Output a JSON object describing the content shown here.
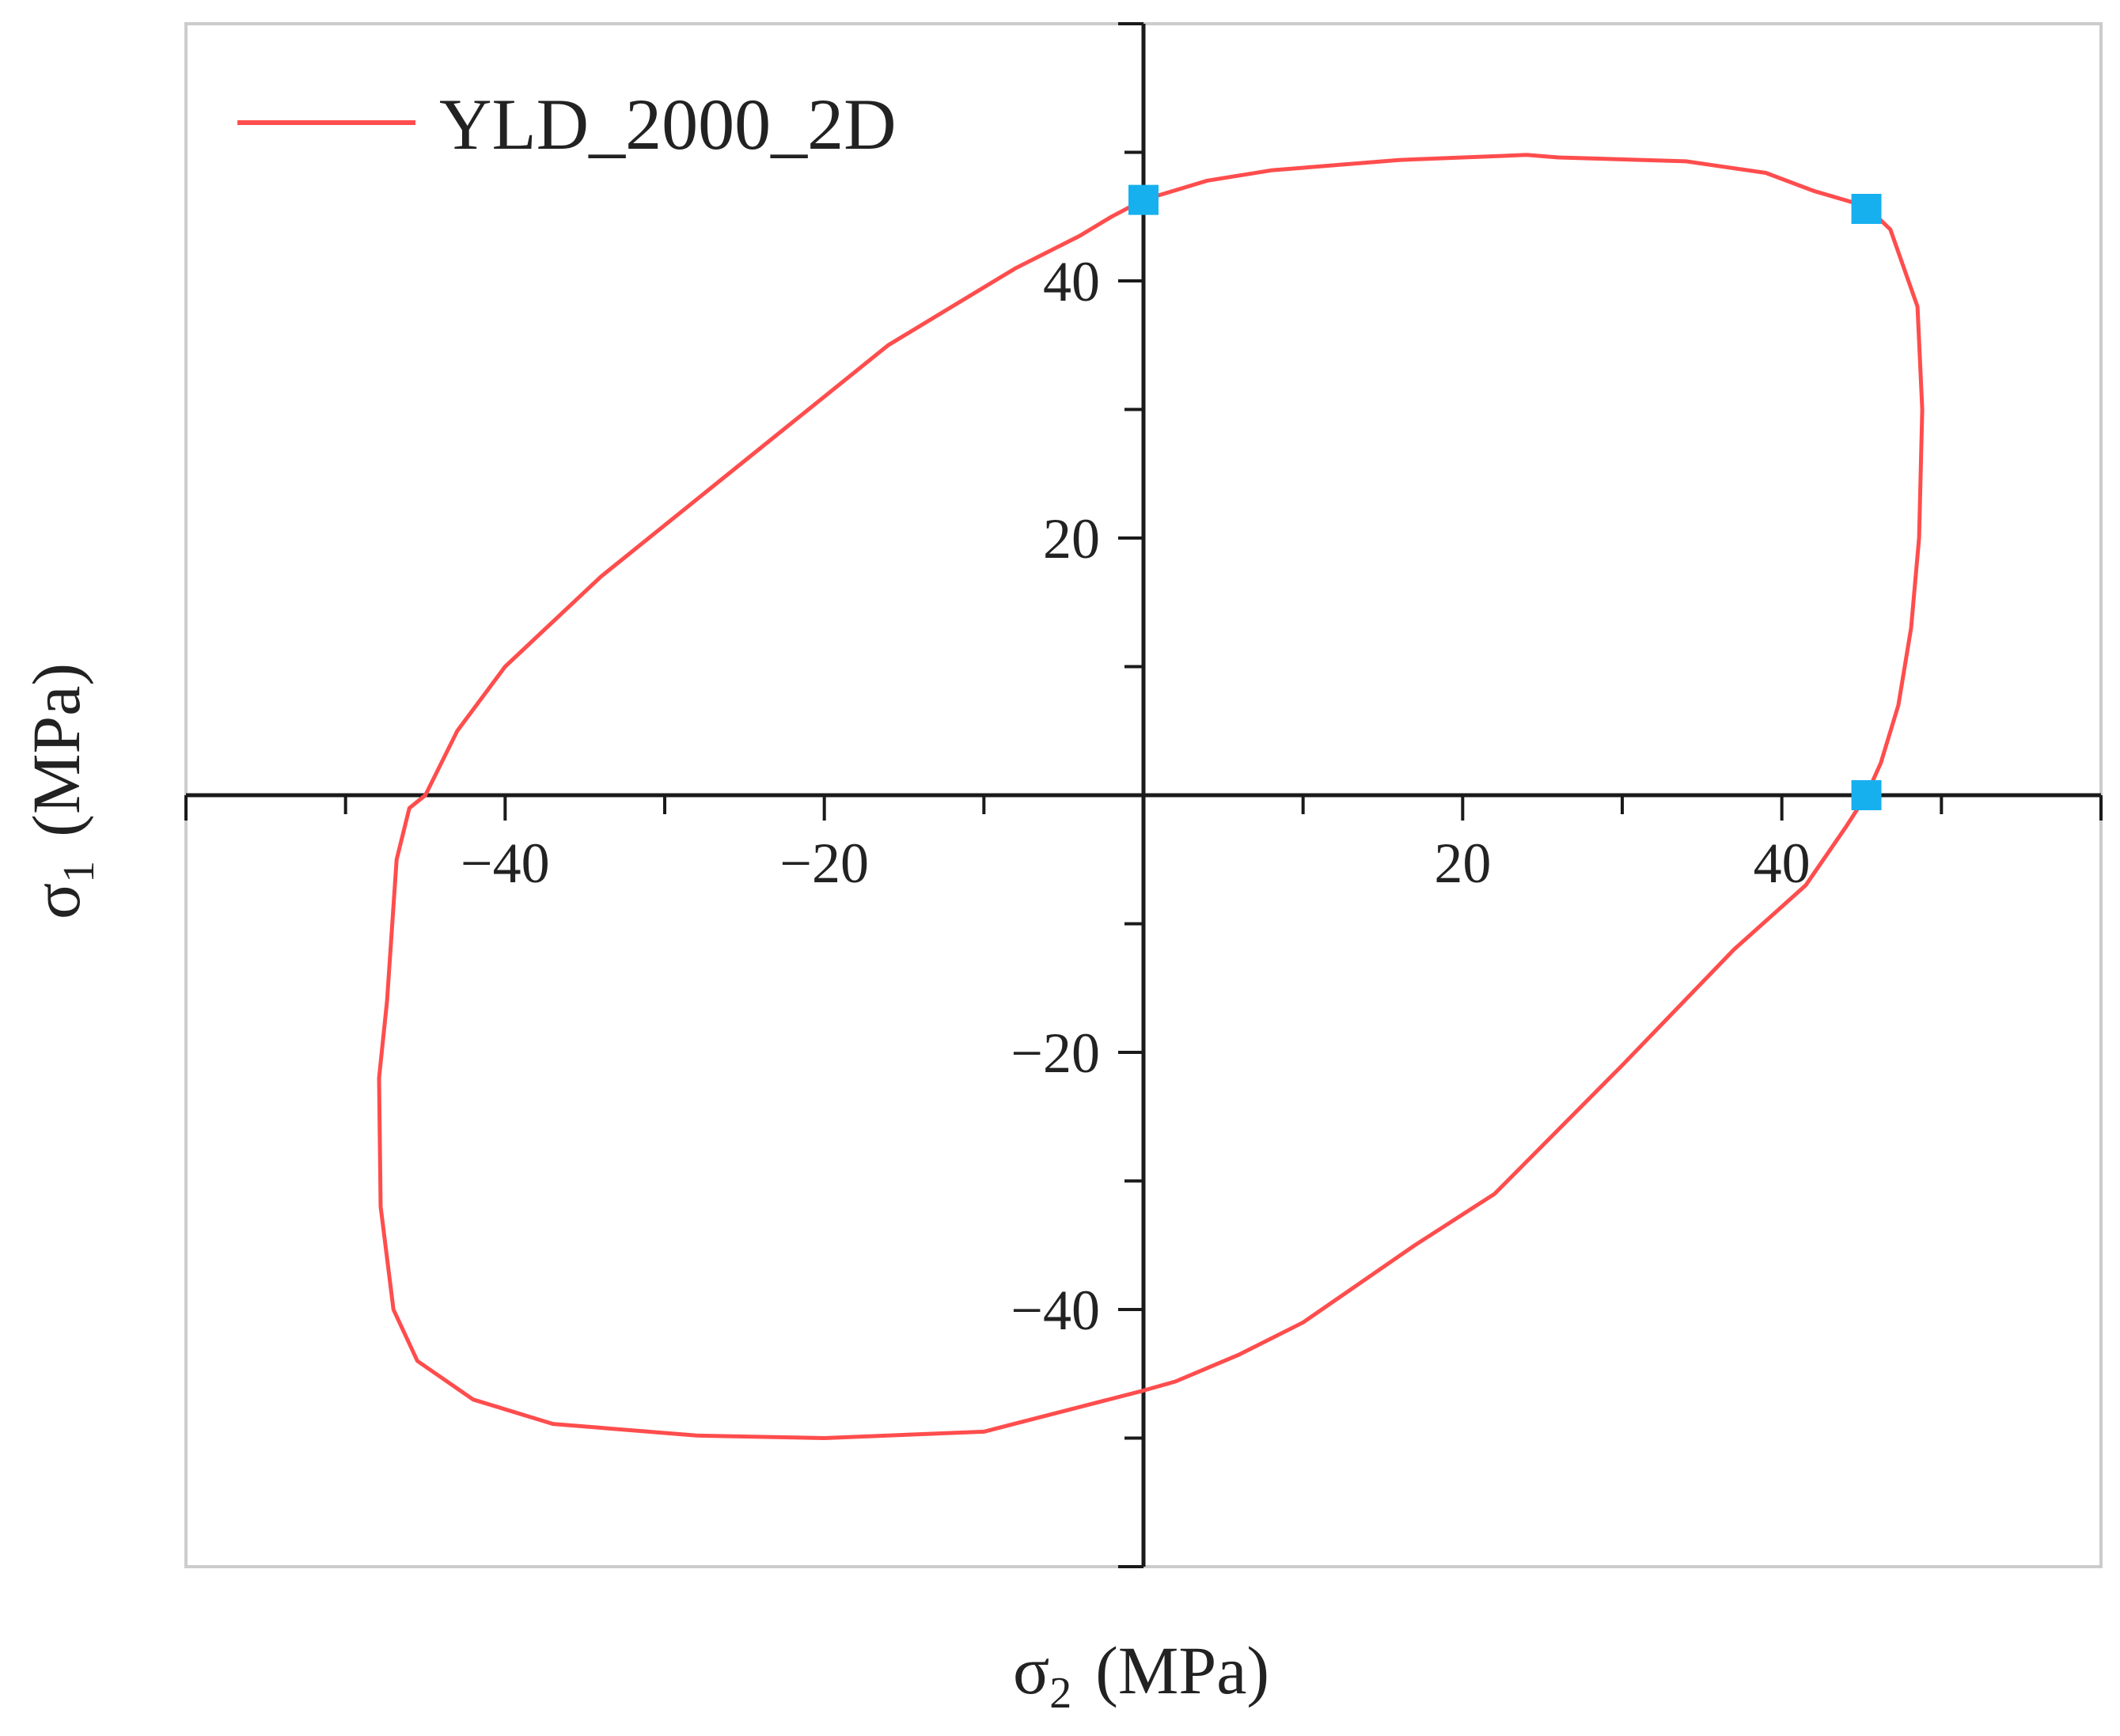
{
  "chart_data": {
    "type": "line",
    "title": "",
    "xlabel": {
      "symbol": "σ",
      "subscript": "2",
      "unit": "(MPa)"
    },
    "ylabel": {
      "symbol": "σ",
      "subscript": "1",
      "unit": "(MPa)"
    },
    "xlim": [
      -60,
      60
    ],
    "ylim": [
      -60,
      60
    ],
    "x_ticks": [
      -40,
      -20,
      20,
      40
    ],
    "y_ticks": [
      40,
      20,
      -20,
      -40
    ],
    "x_tick_labels": [
      "−40",
      "−20",
      "20",
      "40"
    ],
    "y_tick_labels": [
      "40",
      "20",
      "−20",
      "−40"
    ],
    "grid": false,
    "legend": {
      "position": "top-left"
    },
    "series": [
      {
        "name": "YLD_2000_2D",
        "color": "#ff4d4d",
        "closed": true,
        "x": [
          0,
          4,
          8,
          16,
          24,
          26,
          34,
          39,
          42,
          45.3,
          46.8,
          48.5,
          48.8,
          48.6,
          48.1,
          47.3,
          46.2,
          45.3,
          44,
          41.5,
          37,
          30,
          22,
          17,
          10,
          6,
          2,
          0,
          -10,
          -20,
          -28,
          -37,
          -42,
          -45.5,
          -47,
          -47.8,
          -47.9,
          -47.4,
          -46.8,
          -46,
          -45,
          -43,
          -40,
          -34,
          -27,
          -23,
          -20,
          -16,
          -12,
          -8,
          -4,
          -2,
          0
        ],
        "y": [
          46.3,
          47.8,
          48.6,
          49.4,
          49.8,
          49.6,
          49.3,
          48.4,
          47.0,
          45.8,
          44.0,
          38.0,
          30.0,
          20.0,
          13.0,
          7.0,
          2.5,
          0.0,
          -2.5,
          -7.0,
          -12.0,
          -21.0,
          -31.0,
          -35.0,
          -41.0,
          -43.5,
          -45.6,
          -46.3,
          -49.5,
          -50.0,
          -49.8,
          -48.9,
          -47.0,
          -44.0,
          -40.0,
          -32.0,
          -22.0,
          -16.0,
          -5.0,
          -1.0,
          0.0,
          5.0,
          10.0,
          17.0,
          24.0,
          28.0,
          31.0,
          35.0,
          38.0,
          41.0,
          43.5,
          45.0,
          46.3
        ]
      },
      {
        "name": "",
        "type": "scatter",
        "color": "#17b0ef",
        "marker": "square",
        "x": [
          0,
          45.3,
          45.3
        ],
        "y": [
          46.3,
          45.6,
          0
        ]
      }
    ]
  }
}
